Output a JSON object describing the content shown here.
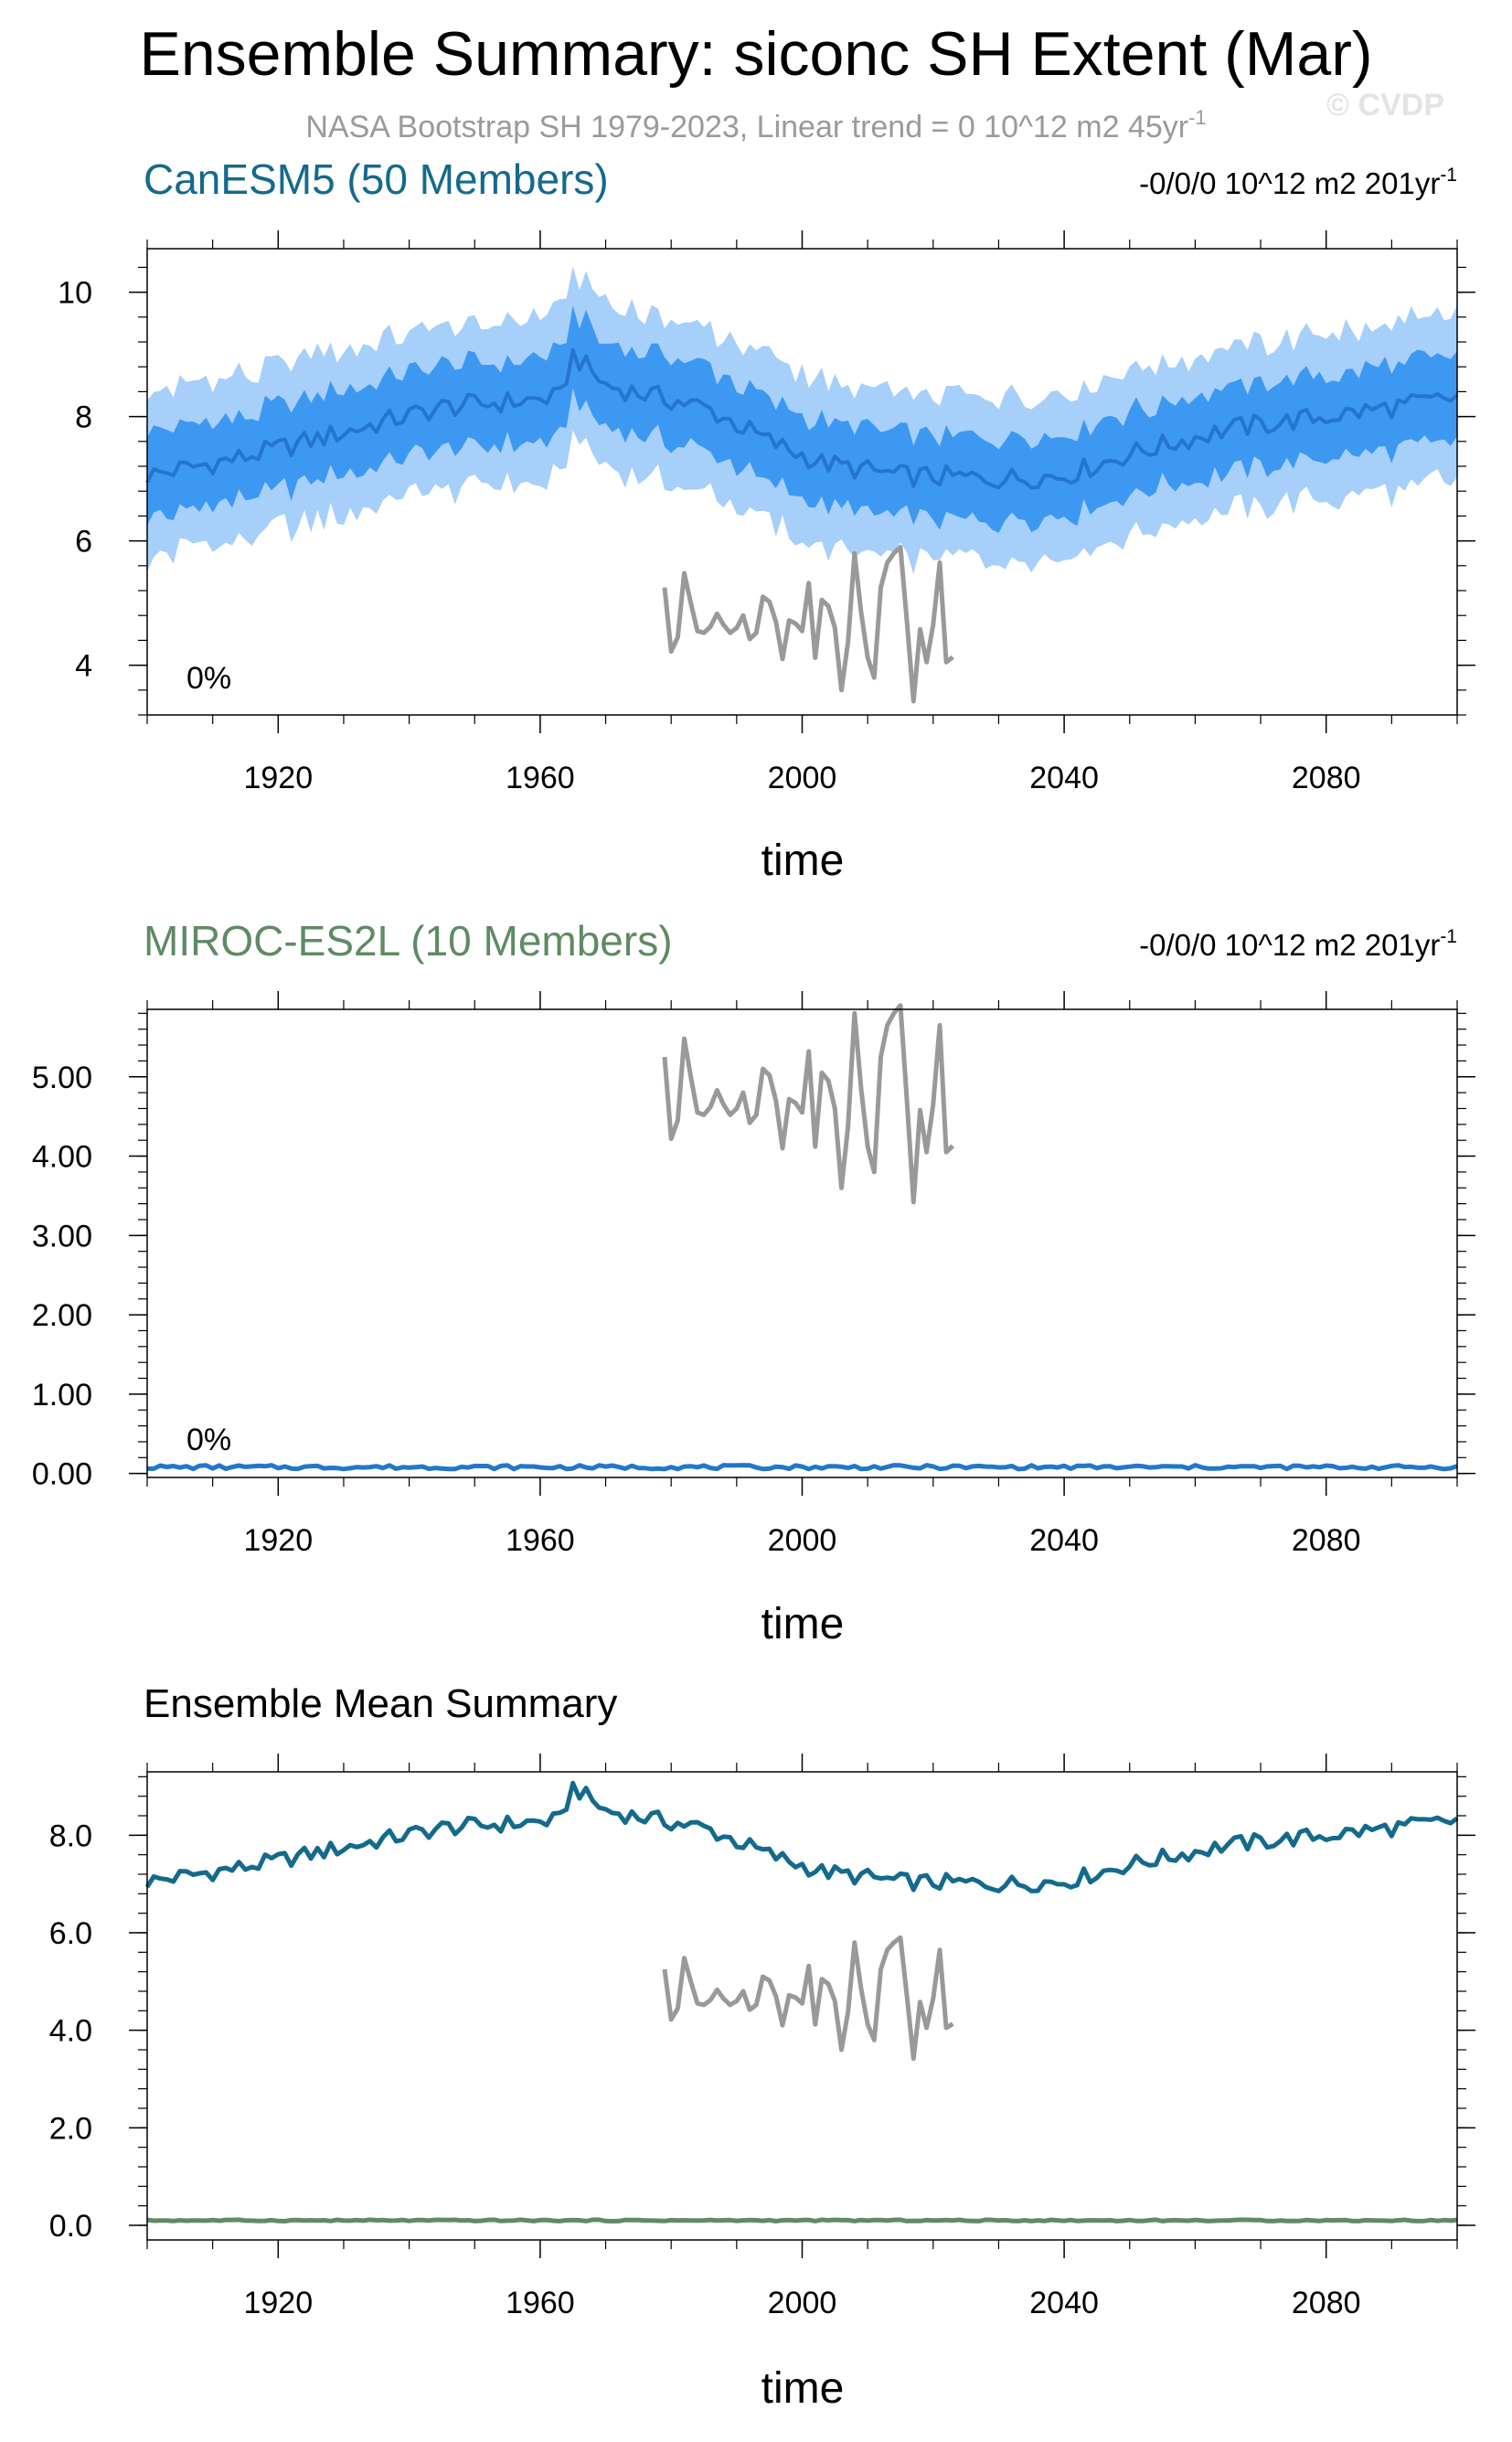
{
  "header": {
    "title": "Ensemble Summary: siconc SH Extent (Mar)",
    "subtitle_text": "NASA Bootstrap SH 1979-2023, Linear trend = 0 10^12 m2 45yr",
    "subtitle_sup": "-1",
    "watermark": "© CVDP"
  },
  "colors": {
    "canesm_title": "#146a8c",
    "miroc_title": "#5f8a64",
    "obs_line": "#999999",
    "band_outer": "#a6cffa",
    "band_inner": "#3d98f2",
    "mean_line": "#2476cc",
    "ens_canesm": "#146a8c",
    "ens_miroc": "#5f8a64"
  },
  "obs": {
    "name": "NASA Bootstrap SH",
    "years": [
      1979,
      2023
    ],
    "values": [
      5.25,
      4.22,
      4.45,
      5.48,
      5.0,
      4.55,
      4.52,
      4.62,
      4.83,
      4.65,
      4.52,
      4.6,
      4.8,
      4.42,
      4.52,
      5.1,
      5.02,
      4.7,
      4.1,
      4.72,
      4.67,
      4.55,
      5.32,
      4.12,
      5.05,
      4.95,
      4.6,
      3.6,
      4.38,
      5.8,
      4.85,
      4.12,
      3.8,
      5.25,
      5.65,
      5.8,
      5.9,
      4.7,
      3.42,
      4.58,
      4.05,
      4.65,
      5.65,
      4.05,
      4.13
    ]
  },
  "chart_data": [
    {
      "type": "area",
      "title": "CanESM5 (50 Members)",
      "right_label": "-0/0/0 10^12 m2 201yr",
      "right_label_sup": "-1",
      "annotation": "0%",
      "xlabel": "time",
      "ylabel": "",
      "xlim": [
        1900,
        2100
      ],
      "ylim": [
        3.2,
        10.7
      ],
      "x_ticks": [
        1920,
        1960,
        2000,
        2040,
        2080
      ],
      "y_ticks": [
        4,
        6,
        8,
        10
      ],
      "y_tick_labels": [
        "4",
        "6",
        "8",
        "10"
      ],
      "mean_anchors": [
        [
          1900,
          7.05
        ],
        [
          1915,
          7.35
        ],
        [
          1930,
          7.75
        ],
        [
          1945,
          8.15
        ],
        [
          1963,
          8.3
        ],
        [
          1965,
          9.0
        ],
        [
          1970,
          8.5
        ],
        [
          1985,
          8.15
        ],
        [
          1995,
          7.6
        ],
        [
          2003,
          7.25
        ],
        [
          2015,
          7.05
        ],
        [
          2030,
          7.0
        ],
        [
          2040,
          7.05
        ],
        [
          2050,
          7.4
        ],
        [
          2065,
          7.8
        ],
        [
          2080,
          8.0
        ],
        [
          2100,
          8.3
        ]
      ],
      "band_inner_halfwidth": 0.6,
      "band_outer_halfwidth": 1.2,
      "series": [
        {
          "role": "ensemble-mean",
          "color": "#2476cc"
        },
        {
          "role": "observations",
          "color": "#999999"
        }
      ]
    },
    {
      "type": "line",
      "title": "MIROC-ES2L (10 Members)",
      "right_label": "-0/0/0 10^12 m2 201yr",
      "right_label_sup": "-1",
      "annotation": "0%",
      "xlabel": "time",
      "ylabel": "",
      "xlim": [
        1900,
        2100
      ],
      "ylim": [
        -0.05,
        5.85
      ],
      "x_ticks": [
        1920,
        1960,
        2000,
        2040,
        2080
      ],
      "y_ticks": [
        0,
        1,
        2,
        3,
        4,
        5
      ],
      "y_tick_labels": [
        "0.00",
        "1.00",
        "2.00",
        "3.00",
        "4.00",
        "5.00"
      ],
      "mean_value": 0.08,
      "series": [
        {
          "role": "ensemble-mean",
          "color": "#2476cc"
        },
        {
          "role": "observations",
          "color": "#999999"
        }
      ]
    },
    {
      "type": "line",
      "title": "Ensemble Mean Summary",
      "xlabel": "time",
      "ylabel": "",
      "xlim": [
        1900,
        2100
      ],
      "ylim": [
        -0.3,
        9.3
      ],
      "x_ticks": [
        1920,
        1960,
        2000,
        2040,
        2080
      ],
      "y_ticks": [
        0,
        2,
        4,
        6,
        8
      ],
      "y_tick_labels": [
        "0.0",
        "2.0",
        "4.0",
        "6.0",
        "8.0"
      ],
      "series": [
        {
          "role": "canesm5-mean",
          "color": "#146a8c"
        },
        {
          "role": "miroc-mean",
          "color": "#5f8a64",
          "value": 0.1
        },
        {
          "role": "observations",
          "color": "#999999"
        }
      ]
    }
  ]
}
